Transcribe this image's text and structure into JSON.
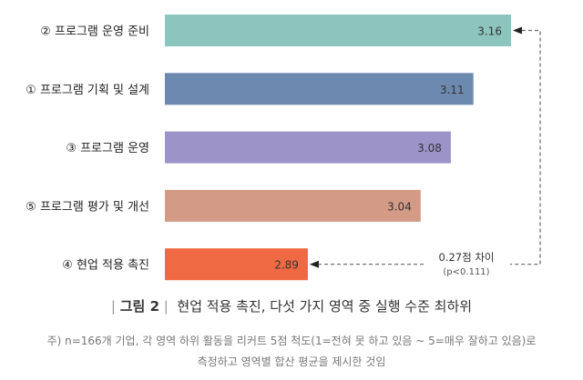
{
  "chart_data": {
    "type": "bar",
    "orientation": "horizontal",
    "categories": [
      "② 프로그램 운영 준비",
      "① 프로그램 기획 및 설계",
      "③ 프로그램 운영",
      "⑤ 프로그램 평가 및 개선",
      "④ 현업 적용 촉진"
    ],
    "values": [
      3.16,
      3.11,
      3.08,
      3.04,
      2.89
    ],
    "value_labels": [
      "3.16",
      "3.11",
      "3.08",
      "3.04",
      "2.89"
    ],
    "colors": [
      "#8cc4be",
      "#6d89b0",
      "#9c93c8",
      "#d39a86",
      "#ef6a42"
    ],
    "xlim": [
      2.7,
      3.25
    ],
    "grid": false,
    "annotation": {
      "line1": "0.27점 차이",
      "line2": "(p<0.111)"
    }
  },
  "caption": {
    "label": "그림 2",
    "title": "현업 적용 촉진, 다섯 가지 영역 중 실행 수준 최하위"
  },
  "note": {
    "line1": "주) n=166개 기업, 각 영역 하위 활동을 리커트 5점 척도(1=전혀 못 하고 있음 ~ 5=매우 잘하고 있음)로",
    "line2": "측정하고 영역별 합산 평균을 제시한 것임"
  }
}
